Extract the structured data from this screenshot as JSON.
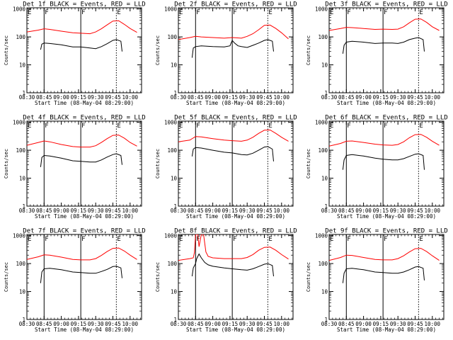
{
  "chart_data": {
    "type": "line",
    "common": {
      "x_ticks": [
        "08:30",
        "08:45",
        "09:00",
        "09:15",
        "09:30",
        "09:45",
        "10:00"
      ],
      "x_tick_minutes": [
        0,
        15,
        30,
        45,
        60,
        75,
        90
      ],
      "xlim_minutes": [
        0,
        100
      ],
      "y_ticks": [
        "1",
        "10",
        "100",
        "1000"
      ],
      "y_tick_values": [
        1,
        10,
        100,
        1000
      ],
      "ylim": [
        1,
        1100
      ],
      "y_scale": "log",
      "ylabel": "Counts/sec",
      "xlabel": "Start Time (08-May-04 08:29:00)",
      "markers": [
        {
          "label": "F",
          "minute": 15,
          "style": "solid"
        },
        {
          "label": "F",
          "minute": 47,
          "style": "solid"
        },
        {
          "label": "E",
          "minute": 78,
          "style": "dotted"
        }
      ],
      "left_label": "E",
      "colors": {
        "events": "#000000",
        "lld": "#ff0000"
      }
    },
    "panels": [
      {
        "title": "Det 1f BLACK = Events, RED = LLD",
        "series": [
          {
            "name": "BLACK",
            "x": [
              12,
              13,
              15,
              20,
              30,
              40,
              47,
              55,
              60,
              65,
              70,
              75,
              78,
              82,
              83
            ],
            "y": [
              35,
              55,
              60,
              58,
              52,
              44,
              44,
              40,
              38,
              45,
              57,
              75,
              80,
              70,
              30
            ]
          },
          {
            "name": "RED",
            "x": [
              0,
              10,
              15,
              20,
              30,
              40,
              47,
              55,
              60,
              65,
              70,
              75,
              80,
              85,
              90,
              96
            ],
            "y": [
              150,
              175,
              195,
              185,
              160,
              140,
              135,
              130,
              150,
              195,
              270,
              370,
              380,
              280,
              200,
              145
            ]
          }
        ]
      },
      {
        "title": "Det 2f BLACK = Events, RED = LLD",
        "series": [
          {
            "name": "BLACK",
            "x": [
              12,
              13,
              15,
              20,
              30,
              40,
              45,
              47,
              49,
              52,
              55,
              60,
              65,
              70,
              75,
              78,
              82,
              83
            ],
            "y": [
              18,
              40,
              45,
              48,
              45,
              44,
              48,
              75,
              60,
              48,
              45,
              42,
              50,
              60,
              75,
              80,
              70,
              30
            ]
          },
          {
            "name": "RED",
            "x": [
              0,
              10,
              15,
              20,
              30,
              40,
              47,
              55,
              60,
              65,
              70,
              75,
              80,
              85,
              90,
              96
            ],
            "y": [
              80,
              95,
              105,
              100,
              95,
              90,
              95,
              90,
              105,
              130,
              180,
              260,
              265,
              200,
              140,
              85
            ]
          }
        ]
      },
      {
        "title": "Det 3f BLACK = Events, RED = LLD",
        "series": [
          {
            "name": "BLACK",
            "x": [
              12,
              13,
              15,
              20,
              30,
              40,
              47,
              55,
              60,
              65,
              70,
              75,
              78,
              82,
              83
            ],
            "y": [
              25,
              50,
              65,
              70,
              65,
              58,
              60,
              60,
              58,
              65,
              80,
              90,
              95,
              80,
              30
            ]
          },
          {
            "name": "RED",
            "x": [
              0,
              10,
              15,
              20,
              30,
              40,
              47,
              55,
              60,
              65,
              70,
              75,
              80,
              85,
              90,
              96
            ],
            "y": [
              170,
              200,
              220,
              215,
              200,
              185,
              190,
              185,
              190,
              230,
              320,
              430,
              440,
              330,
              230,
              170
            ]
          }
        ]
      },
      {
        "title": "Det 4f BLACK = Events, RED = LLD",
        "series": [
          {
            "name": "BLACK",
            "x": [
              12,
              13,
              15,
              20,
              30,
              40,
              47,
              55,
              60,
              65,
              70,
              75,
              78,
              82,
              83
            ],
            "y": [
              25,
              55,
              65,
              62,
              52,
              42,
              40,
              38,
              38,
              45,
              57,
              70,
              75,
              65,
              30
            ]
          },
          {
            "name": "RED",
            "x": [
              0,
              10,
              15,
              20,
              30,
              40,
              47,
              55,
              60,
              65,
              70,
              75,
              80,
              85,
              90,
              96
            ],
            "y": [
              150,
              190,
              215,
              200,
              160,
              135,
              130,
              130,
              145,
              190,
              260,
              340,
              350,
              270,
              190,
              140
            ]
          }
        ]
      },
      {
        "title": "Det 5f BLACK = Events, RED = LLD",
        "series": [
          {
            "name": "BLACK",
            "x": [
              12,
              13,
              15,
              20,
              30,
              40,
              47,
              55,
              60,
              65,
              70,
              75,
              78,
              82,
              83
            ],
            "y": [
              60,
              110,
              125,
              120,
              100,
              85,
              80,
              70,
              68,
              78,
              100,
              130,
              135,
              110,
              40
            ]
          },
          {
            "name": "RED",
            "x": [
              0,
              10,
              15,
              20,
              30,
              40,
              47,
              55,
              60,
              65,
              70,
              75,
              80,
              85,
              90,
              96
            ],
            "y": [
              200,
              230,
              310,
              300,
              260,
              230,
              220,
              210,
              230,
              290,
              400,
              520,
              530,
              400,
              290,
              210
            ]
          }
        ]
      },
      {
        "title": "Det 6f BLACK = Events, RED = LLD",
        "series": [
          {
            "name": "BLACK",
            "x": [
              12,
              13,
              15,
              20,
              30,
              40,
              47,
              55,
              60,
              65,
              70,
              75,
              78,
              82,
              83
            ],
            "y": [
              20,
              45,
              65,
              70,
              62,
              52,
              48,
              45,
              45,
              50,
              60,
              72,
              75,
              65,
              20
            ]
          },
          {
            "name": "RED",
            "x": [
              0,
              10,
              15,
              20,
              30,
              40,
              47,
              55,
              60,
              65,
              70,
              75,
              80,
              85,
              90,
              96
            ],
            "y": [
              140,
              175,
              210,
              215,
              190,
              165,
              155,
              150,
              160,
              200,
              280,
              360,
              370,
              290,
              210,
              150
            ]
          }
        ]
      },
      {
        "title": "Det 7f BLACK = Events, RED = LLD",
        "series": [
          {
            "name": "BLACK",
            "x": [
              12,
              13,
              15,
              20,
              30,
              40,
              47,
              55,
              60,
              65,
              70,
              75,
              78,
              82,
              83
            ],
            "y": [
              20,
              50,
              65,
              68,
              60,
              50,
              48,
              45,
              45,
              52,
              62,
              78,
              80,
              70,
              30
            ]
          },
          {
            "name": "RED",
            "x": [
              0,
              10,
              15,
              20,
              30,
              40,
              47,
              55,
              60,
              65,
              70,
              75,
              80,
              85,
              90,
              96
            ],
            "y": [
              140,
              175,
              205,
              200,
              170,
              140,
              135,
              135,
              150,
              195,
              270,
              350,
              360,
              280,
              200,
              140
            ]
          }
        ]
      },
      {
        "title": "Det 8f BLACK = Events, RED = LLD",
        "series": [
          {
            "name": "BLACK",
            "x": [
              12,
              13,
              15,
              16,
              18,
              20,
              23,
              26,
              30,
              40,
              47,
              55,
              60,
              65,
              70,
              75,
              78,
              82,
              83
            ],
            "y": [
              35,
              70,
              100,
              150,
              220,
              160,
              110,
              90,
              80,
              70,
              65,
              60,
              58,
              65,
              78,
              95,
              100,
              85,
              35
            ]
          },
          {
            "name": "RED",
            "x": [
              0,
              10,
              13,
              14,
              15,
              16,
              17,
              18,
              20,
              22,
              24,
              26,
              30,
              40,
              47,
              55,
              60,
              65,
              70,
              75,
              80,
              85,
              90,
              96
            ],
            "y": [
              130,
              150,
              160,
              250,
              1100,
              1100,
              1100,
              400,
              1100,
              1100,
              260,
              180,
              160,
              150,
              150,
              150,
              165,
              210,
              300,
              380,
              390,
              300,
              210,
              145
            ]
          }
        ]
      },
      {
        "title": "Det 9f BLACK = Events, RED = LLD",
        "series": [
          {
            "name": "BLACK",
            "x": [
              12,
              13,
              15,
              20,
              30,
              40,
              47,
              55,
              60,
              65,
              70,
              75,
              78,
              82,
              83
            ],
            "y": [
              20,
              45,
              65,
              68,
              60,
              50,
              48,
              45,
              45,
              50,
              60,
              75,
              78,
              68,
              25
            ]
          },
          {
            "name": "RED",
            "x": [
              0,
              10,
              15,
              20,
              30,
              40,
              47,
              55,
              60,
              65,
              70,
              75,
              80,
              85,
              90,
              96
            ],
            "y": [
              130,
              165,
              200,
              195,
              165,
              140,
              135,
              135,
              150,
              190,
              260,
              340,
              350,
              270,
              190,
              130
            ]
          }
        ]
      }
    ]
  }
}
